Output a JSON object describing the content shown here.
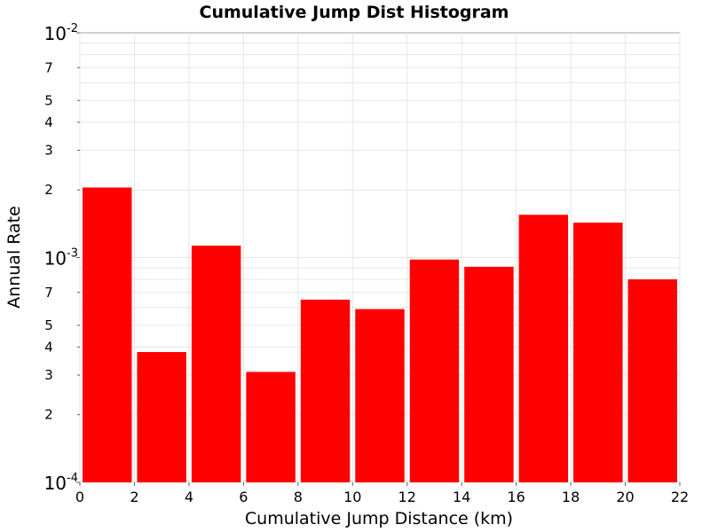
{
  "chart_data": {
    "type": "bar",
    "title": "Cumulative Jump Dist Histogram",
    "xlabel": "Cumulative Jump Distance (km)",
    "ylabel": "Annual Rate",
    "y_scale": "log",
    "xlim": [
      0,
      22
    ],
    "ylim": [
      0.0001,
      0.01
    ],
    "grid": true,
    "bin_width": 2,
    "x_ticks": [
      "0",
      "2",
      "4",
      "6",
      "8",
      "10",
      "12",
      "14",
      "16",
      "18",
      "20",
      "22"
    ],
    "y_major_ticks": [
      {
        "value": 0.01,
        "base": "10",
        "exp": "-2"
      },
      {
        "value": 0.001,
        "base": "10",
        "exp": "-3"
      },
      {
        "value": 0.0001,
        "base": "10",
        "exp": "-4"
      }
    ],
    "y_minor_tick_labels": [
      {
        "value": 0.007,
        "label": "7"
      },
      {
        "value": 0.005,
        "label": "5"
      },
      {
        "value": 0.004,
        "label": "4"
      },
      {
        "value": 0.003,
        "label": "3"
      },
      {
        "value": 0.002,
        "label": "2"
      },
      {
        "value": 0.0007,
        "label": "7"
      },
      {
        "value": 0.0005,
        "label": "5"
      },
      {
        "value": 0.0004,
        "label": "4"
      },
      {
        "value": 0.0003,
        "label": "3"
      },
      {
        "value": 0.0002,
        "label": "2"
      }
    ],
    "bins": [
      {
        "x_start": 0,
        "x_end": 2,
        "value": 0.00205
      },
      {
        "x_start": 2,
        "x_end": 4,
        "value": 0.00038
      },
      {
        "x_start": 4,
        "x_end": 6,
        "value": 0.00113
      },
      {
        "x_start": 6,
        "x_end": 8,
        "value": 0.00031
      },
      {
        "x_start": 8,
        "x_end": 10,
        "value": 0.00065
      },
      {
        "x_start": 10,
        "x_end": 12,
        "value": 0.00059
      },
      {
        "x_start": 12,
        "x_end": 14,
        "value": 0.00098
      },
      {
        "x_start": 14,
        "x_end": 16,
        "value": 0.00091
      },
      {
        "x_start": 16,
        "x_end": 18,
        "value": 0.00155
      },
      {
        "x_start": 18,
        "x_end": 20,
        "value": 0.00143
      },
      {
        "x_start": 20,
        "x_end": 22,
        "value": 0.0008
      }
    ],
    "bar_color": "#ff0000"
  }
}
